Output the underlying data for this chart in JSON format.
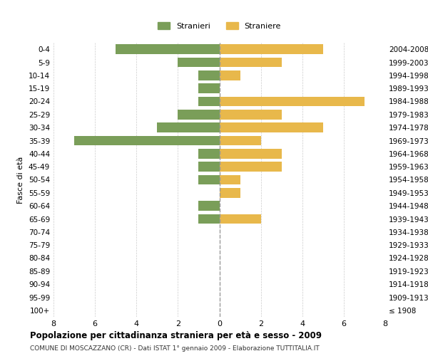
{
  "age_groups": [
    "100+",
    "95-99",
    "90-94",
    "85-89",
    "80-84",
    "75-79",
    "70-74",
    "65-69",
    "60-64",
    "55-59",
    "50-54",
    "45-49",
    "40-44",
    "35-39",
    "30-34",
    "25-29",
    "20-24",
    "15-19",
    "10-14",
    "5-9",
    "0-4"
  ],
  "birth_years": [
    "≤ 1908",
    "1909-1913",
    "1914-1918",
    "1919-1923",
    "1924-1928",
    "1929-1933",
    "1934-1938",
    "1939-1943",
    "1944-1948",
    "1949-1953",
    "1954-1958",
    "1959-1963",
    "1964-1968",
    "1969-1973",
    "1974-1978",
    "1979-1983",
    "1984-1988",
    "1989-1993",
    "1994-1998",
    "1999-2003",
    "2004-2008"
  ],
  "maschi": [
    0,
    0,
    0,
    0,
    0,
    0,
    0,
    1,
    1,
    0,
    1,
    1,
    1,
    7,
    3,
    2,
    1,
    1,
    1,
    2,
    5
  ],
  "femmine": [
    0,
    0,
    0,
    0,
    0,
    0,
    0,
    2,
    0,
    1,
    1,
    3,
    3,
    2,
    5,
    3,
    7,
    0,
    1,
    3,
    5
  ],
  "color_maschi": "#7a9e59",
  "color_femmine": "#e8b84b",
  "title": "Popolazione per cittadinanza straniera per età e sesso - 2009",
  "subtitle": "COMUNE DI MOSCAZZANO (CR) - Dati ISTAT 1° gennaio 2009 - Elaborazione TUTTITALIA.IT",
  "ylabel_left": "Fasce di età",
  "legend_maschi": "Stranieri",
  "legend_femmine": "Straniere",
  "xlim": 8,
  "background_color": "#ffffff",
  "grid_color": "#cccccc"
}
